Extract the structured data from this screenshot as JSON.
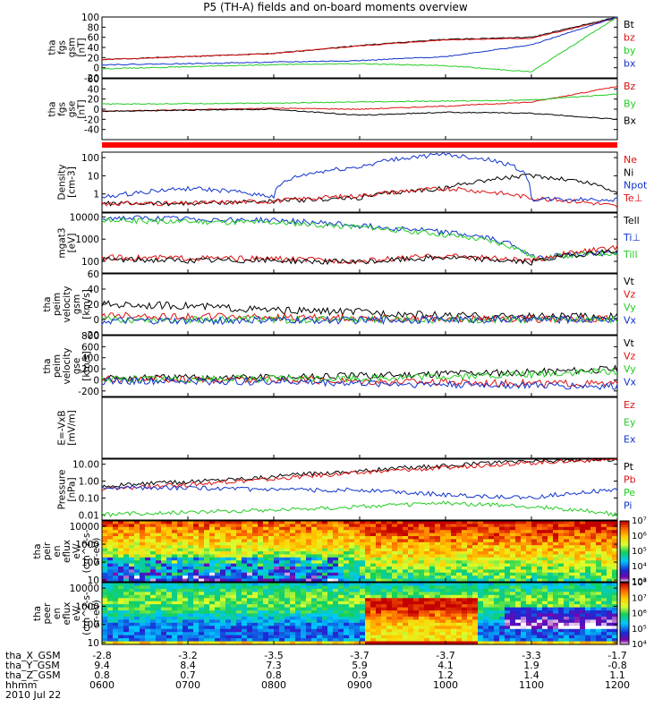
{
  "title": "P5 (TH-A) fields and on-board moments overview",
  "date": "2010 Jul 22",
  "colors": {
    "red": "#dd1111",
    "green": "#22cc22",
    "blue": "#1133cc",
    "black": "#000000"
  },
  "orbit": {
    "rows": [
      {
        "label": "tha_X_GSM",
        "values": [
          "-2.8",
          "-3.2",
          "-3.5",
          "-3.7",
          "-3.7",
          "-3.3",
          "-1.7"
        ]
      },
      {
        "label": "tha_Y_GSM",
        "values": [
          "9.4",
          "8.4",
          "7.3",
          "5.9",
          "4.1",
          "1.9",
          "-0.8"
        ]
      },
      {
        "label": "tha_Z_GSM",
        "values": [
          "0.8",
          "0.7",
          "0.8",
          "0.9",
          "1.2",
          "1.4",
          "1.1"
        ]
      },
      {
        "label": "hhmm",
        "values": [
          "0600",
          "0700",
          "0800",
          "0900",
          "1000",
          "1100",
          "1200"
        ]
      }
    ]
  },
  "chart_data": [
    {
      "type": "line",
      "id": "fgs_gsm",
      "ylabel": [
        "tha",
        "fgs",
        "gsm",
        "[nT]"
      ],
      "ylim": [
        -20,
        100
      ],
      "ticks": [
        "-20",
        "0",
        "20",
        "40",
        "60",
        "80",
        "100"
      ],
      "x": [
        "0600",
        "0700",
        "0800",
        "0900",
        "1000",
        "1100",
        "1200"
      ],
      "legend": [
        {
          "label": "Bt",
          "color": "black"
        },
        {
          "label": "bz",
          "color": "red"
        },
        {
          "label": "by",
          "color": "green"
        },
        {
          "label": "bx",
          "color": "blue"
        }
      ],
      "series": [
        {
          "name": "Bt",
          "color": "black",
          "values": [
            16,
            22,
            28,
            44,
            56,
            60,
            100
          ]
        },
        {
          "name": "bz",
          "color": "red",
          "values": [
            16,
            22,
            28,
            43,
            55,
            58,
            98
          ]
        },
        {
          "name": "by",
          "color": "green",
          "values": [
            -2,
            2,
            6,
            8,
            4,
            -8,
            100
          ]
        },
        {
          "name": "bx",
          "color": "blue",
          "values": [
            6,
            8,
            11,
            14,
            22,
            45,
            100
          ]
        }
      ]
    },
    {
      "type": "line",
      "id": "fgs_gse",
      "ylabel": [
        "tha",
        "fgs",
        "gse",
        "[nT]"
      ],
      "ylim": [
        -60,
        60
      ],
      "ticks": [
        "-40",
        "-20",
        "0",
        "20",
        "40",
        "60"
      ],
      "x": [
        "0600",
        "0700",
        "0800",
        "0900",
        "1000",
        "1100",
        "1200"
      ],
      "legend": [
        {
          "label": "Bz",
          "color": "red"
        },
        {
          "label": "By",
          "color": "green"
        },
        {
          "label": "Bx",
          "color": "black"
        }
      ],
      "series": [
        {
          "name": "Bz",
          "color": "red",
          "values": [
            -4,
            -1,
            2,
            0,
            6,
            14,
            45
          ]
        },
        {
          "name": "By",
          "color": "green",
          "values": [
            10,
            11,
            12,
            14,
            16,
            18,
            30
          ]
        },
        {
          "name": "Bx",
          "color": "black",
          "values": [
            -4,
            -2,
            0,
            -12,
            -6,
            -8,
            -20
          ]
        }
      ]
    },
    {
      "type": "line",
      "id": "density",
      "ylabel": [
        "Density",
        "[cm-3]"
      ],
      "ylim": [
        0.1,
        200
      ],
      "log": true,
      "ticks": [
        "1",
        "10",
        "100"
      ],
      "x": [
        "0600",
        "0700",
        "0800",
        "0900",
        "1000",
        "1100",
        "1200"
      ],
      "legend": [
        {
          "label": "Ne",
          "color": "red"
        },
        {
          "label": "Ni",
          "color": "black"
        },
        {
          "label": "Npot",
          "color": "blue"
        },
        {
          "label": "Te⊥",
          "color": "red"
        }
      ],
      "series": [
        {
          "name": "Ni",
          "color": "black",
          "values": [
            0.3,
            0.3,
            0.4,
            0.6,
            2,
            10,
            1
          ]
        },
        {
          "name": "Ne",
          "color": "red",
          "values": [
            0.3,
            0.3,
            0.4,
            0.8,
            2,
            0.6,
            0.2
          ]
        },
        {
          "name": "Npot",
          "color": "blue",
          "values": [
            0.6,
            2,
            0.7,
            30,
            150,
            0.5,
            0.5
          ]
        }
      ]
    },
    {
      "type": "line",
      "id": "temperature",
      "ylabel": [
        "mgat3",
        "[eV]"
      ],
      "ylim": [
        30,
        15000
      ],
      "log": true,
      "ticks": [
        "100",
        "1000",
        "10000"
      ],
      "x": [
        "0600",
        "0700",
        "0800",
        "0900",
        "1000",
        "1100",
        "1200"
      ],
      "legend": [
        {
          "label": "Tell",
          "color": "black"
        },
        {
          "label": "Ti⊥",
          "color": "blue"
        },
        {
          "label": "Till",
          "color": "green"
        }
      ],
      "series": [
        {
          "name": "Ti⊥",
          "color": "blue",
          "values": [
            9000,
            8000,
            7000,
            4000,
            2000,
            150,
            250
          ]
        },
        {
          "name": "Till",
          "color": "green",
          "values": [
            7000,
            6000,
            5500,
            3500,
            1500,
            140,
            240
          ]
        },
        {
          "name": "Te⊥",
          "color": "red",
          "values": [
            150,
            140,
            130,
            100,
            180,
            100,
            400
          ]
        },
        {
          "name": "Tell",
          "color": "black",
          "values": [
            120,
            110,
            110,
            90,
            150,
            90,
            300
          ]
        }
      ]
    },
    {
      "type": "line",
      "id": "velocity_gsm",
      "ylabel": [
        "tha",
        "peim",
        "velocity",
        "gsm",
        "[km/s]"
      ],
      "ylim": [
        -20,
        60
      ],
      "ticks": [
        "-20",
        "0",
        "20",
        "40",
        "60"
      ],
      "x": [
        "0600",
        "0700",
        "0800",
        "0900",
        "1000",
        "1100",
        "1200"
      ],
      "legend": [
        {
          "label": "Vt",
          "color": "black"
        },
        {
          "label": "Vz",
          "color": "red"
        },
        {
          "label": "Vy",
          "color": "green"
        },
        {
          "label": "Vx",
          "color": "blue"
        }
      ],
      "series": [
        {
          "name": "Vt",
          "color": "black",
          "values": [
            20,
            18,
            12,
            10,
            5,
            4,
            4
          ]
        },
        {
          "name": "Vz",
          "color": "red",
          "values": [
            5,
            4,
            3,
            2,
            1,
            1,
            1
          ]
        },
        {
          "name": "Vy",
          "color": "green",
          "values": [
            0,
            0,
            0,
            0,
            0,
            0,
            0
          ]
        },
        {
          "name": "Vx",
          "color": "blue",
          "values": [
            -2,
            -2,
            -1,
            -1,
            0,
            0,
            0
          ]
        }
      ]
    },
    {
      "type": "line",
      "id": "velocity_gse",
      "ylabel": [
        "tha",
        "peim",
        "velocity",
        "gse",
        "[km/s]"
      ],
      "ylim": [
        -300,
        800
      ],
      "ticks": [
        "-200",
        "0",
        "200",
        "400",
        "600",
        "800"
      ],
      "x": [
        "0600",
        "0700",
        "0800",
        "0900",
        "1000",
        "1100",
        "1200"
      ],
      "legend": [
        {
          "label": "Vt",
          "color": "black"
        },
        {
          "label": "Vz",
          "color": "red"
        },
        {
          "label": "Vy",
          "color": "green"
        },
        {
          "label": "Vx",
          "color": "blue"
        }
      ],
      "series": [
        {
          "name": "Vt",
          "color": "black",
          "values": [
            30,
            35,
            45,
            70,
            120,
            140,
            200
          ]
        },
        {
          "name": "Vz",
          "color": "red",
          "values": [
            10,
            5,
            0,
            -20,
            -40,
            -60,
            -80
          ]
        },
        {
          "name": "Vy",
          "color": "green",
          "values": [
            20,
            20,
            20,
            30,
            60,
            100,
            160
          ]
        },
        {
          "name": "Vx",
          "color": "blue",
          "values": [
            -20,
            -25,
            -30,
            -60,
            -80,
            -100,
            -120
          ]
        }
      ]
    },
    {
      "type": "line",
      "id": "efield",
      "ylabel": [
        "E=-VxB",
        "[mV/m]"
      ],
      "ylim": [
        0,
        1
      ],
      "ticks": [],
      "x": [
        "0600",
        "0700",
        "0800",
        "0900",
        "1000",
        "1100",
        "1200"
      ],
      "legend": [
        {
          "label": "Ez",
          "color": "red"
        },
        {
          "label": "Ey",
          "color": "green"
        },
        {
          "label": "Ex",
          "color": "blue"
        }
      ],
      "series": []
    },
    {
      "type": "line",
      "id": "pressure",
      "ylabel": [
        "Pressure",
        "[nPa]"
      ],
      "ylim": [
        0.005,
        20
      ],
      "log": true,
      "ticks": [
        "0.01",
        "0.10",
        "1.00",
        "10.00"
      ],
      "x": [
        "0600",
        "0700",
        "0800",
        "0900",
        "1000",
        "1100",
        "1200"
      ],
      "legend": [
        {
          "label": "Pt",
          "color": "black"
        },
        {
          "label": "Pb",
          "color": "red"
        },
        {
          "label": "Pe",
          "color": "green"
        },
        {
          "label": "Pi",
          "color": "blue"
        }
      ],
      "series": [
        {
          "name": "Pt",
          "color": "black",
          "values": [
            0.5,
            0.9,
            1.8,
            4,
            8,
            15,
            20
          ]
        },
        {
          "name": "Pb",
          "color": "red",
          "values": [
            0.3,
            0.6,
            1.3,
            3,
            6,
            12,
            20
          ]
        },
        {
          "name": "Pi",
          "color": "blue",
          "values": [
            0.4,
            0.4,
            0.3,
            0.3,
            0.15,
            0.1,
            0.3
          ]
        },
        {
          "name": "Pe",
          "color": "green",
          "values": [
            0.01,
            0.015,
            0.02,
            0.03,
            0.05,
            0.03,
            0.01
          ]
        }
      ]
    },
    {
      "type": "heatmap",
      "id": "peir_spec",
      "ylabel": [
        "tha",
        "peir",
        "en",
        "eflux",
        "eV/",
        "(cm^2-s-",
        "sr-eV)"
      ],
      "ylim": [
        8,
        20000
      ],
      "log": true,
      "ticks": [
        "10",
        "100",
        "1000",
        "10000"
      ],
      "colorbar": {
        "ticks": [
          "10³",
          "10⁴",
          "10⁵",
          "10⁶",
          "10⁷"
        ],
        "min": 1000,
        "max": 10000000
      }
    },
    {
      "type": "heatmap",
      "id": "peer_spec",
      "ylabel": [
        "tha",
        "peer",
        "en",
        "eflux",
        "eV/",
        "(cm^2-s-",
        "sr-eV)"
      ],
      "ylim": [
        8,
        20000
      ],
      "log": true,
      "ticks": [
        "10",
        "100",
        "1000",
        "10000"
      ],
      "colorbar": {
        "ticks": [
          "10⁴",
          "10⁵",
          "10⁶",
          "10⁷",
          "10⁸"
        ],
        "min": 10000,
        "max": 100000000
      }
    }
  ]
}
